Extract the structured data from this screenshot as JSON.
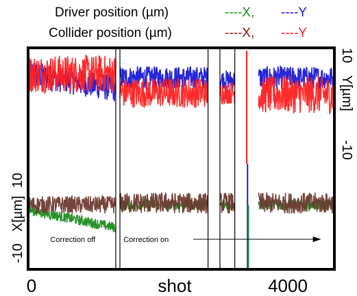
{
  "chart_data": {
    "type": "line",
    "title": "",
    "legend": {
      "placement": "top",
      "rows": [
        {
          "label": "Driver position (µm)",
          "entries": [
            {
              "text": "----X,",
              "color": "#1e8c1e"
            },
            {
              "text": "----Y",
              "color": "#1a1ad6"
            }
          ]
        },
        {
          "label": "Collider position (µm)",
          "entries": [
            {
              "text": "----X,",
              "color": "#8b1010"
            },
            {
              "text": "----Y",
              "color": "#ff2020"
            }
          ]
        }
      ]
    },
    "x_axis": {
      "label": "shot",
      "ticks": [
        {
          "value": 0,
          "label": "0"
        },
        {
          "value": 4000,
          "label": "4000"
        }
      ],
      "range": [
        0,
        5100
      ]
    },
    "y_axis_top": {
      "label": "Y[µm]",
      "side": "right",
      "ticks": [
        {
          "value": 10,
          "label": "10"
        },
        {
          "value": -10,
          "label": "-10"
        }
      ],
      "range": [
        -17,
        13
      ]
    },
    "y_axis_bottom": {
      "label": "X[µm]",
      "side": "left",
      "ticks": [
        {
          "value": 10,
          "label": "10"
        },
        {
          "value": -10,
          "label": "-10"
        }
      ],
      "range": [
        -18,
        12
      ]
    },
    "segments_x": [
      [
        0,
        1450
      ],
      [
        1520,
        3000
      ],
      [
        3200,
        3450
      ],
      [
        3850,
        5100
      ]
    ],
    "separators_x": [
      1450,
      1520,
      3000,
      3200,
      3450
    ],
    "spike_x": 3650,
    "annotations": [
      {
        "text": "Correction off",
        "x": 350
      },
      {
        "text": "Correction on",
        "x": 1580,
        "arrow_to_x": 4900
      }
    ],
    "series": [
      {
        "group": "top",
        "color": "#1a1ad6",
        "levels": [
          {
            "from": 0,
            "to": 1450,
            "mean": 6.5,
            "spread": 3.5,
            "trend": -4
          },
          {
            "from": 1520,
            "to": 3000,
            "mean": 5.5,
            "spread": 3
          },
          {
            "from": 3200,
            "to": 3450,
            "mean": 5,
            "spread": 2.5
          },
          {
            "from": 3850,
            "to": 5100,
            "mean": 5.5,
            "spread": 3
          }
        ]
      },
      {
        "group": "top",
        "color": "#ff2020",
        "levels": [
          {
            "from": 0,
            "to": 1450,
            "mean": 6.5,
            "spread": 5
          },
          {
            "from": 1520,
            "to": 3000,
            "mean": 1.5,
            "spread": 4
          },
          {
            "from": 3200,
            "to": 3450,
            "mean": 1.5,
            "spread": 3
          },
          {
            "from": 3850,
            "to": 5100,
            "mean": 1,
            "spread": 5
          }
        ]
      },
      {
        "group": "bottom",
        "color": "#1e8c1e",
        "levels": [
          {
            "from": 0,
            "to": 1450,
            "mean": -1.5,
            "spread": 1.5,
            "trend": -5
          },
          {
            "from": 1520,
            "to": 3000,
            "mean": 0,
            "spread": 1.5
          },
          {
            "from": 3200,
            "to": 3450,
            "mean": 0,
            "spread": 1.5
          },
          {
            "from": 3850,
            "to": 5100,
            "mean": 0,
            "spread": 1.5
          }
        ]
      },
      {
        "group": "bottom",
        "color": "#6e3a32",
        "levels": [
          {
            "from": 0,
            "to": 1450,
            "mean": 0,
            "spread": 2.5
          },
          {
            "from": 1520,
            "to": 3000,
            "mean": 0.5,
            "spread": 3
          },
          {
            "from": 3200,
            "to": 3450,
            "mean": 0.5,
            "spread": 3
          },
          {
            "from": 3850,
            "to": 5100,
            "mean": 0.5,
            "spread": 3
          }
        ]
      }
    ]
  }
}
